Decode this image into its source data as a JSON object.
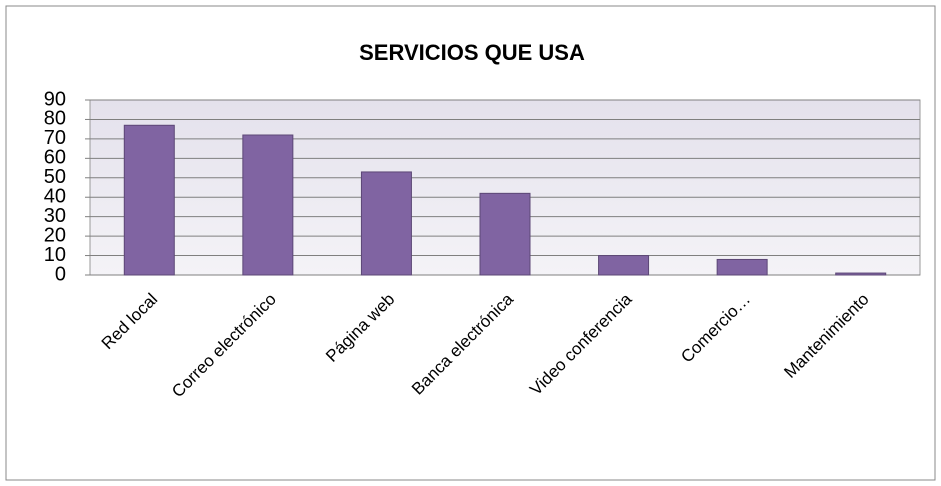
{
  "chart_data": {
    "type": "bar",
    "title": "SERVICIOS QUE USA",
    "categories": [
      "Red local",
      "Correo electrónico",
      "Página web",
      "Banca electrónica",
      "Video conferencia",
      "Comercio…",
      "Mantenimiento"
    ],
    "values": [
      77,
      72,
      53,
      42,
      10,
      8,
      1
    ],
    "color": "#8064a2",
    "ylim": [
      0,
      90
    ],
    "yticks": [
      0,
      10,
      20,
      30,
      40,
      50,
      60,
      70,
      80,
      90
    ],
    "grid": true
  }
}
